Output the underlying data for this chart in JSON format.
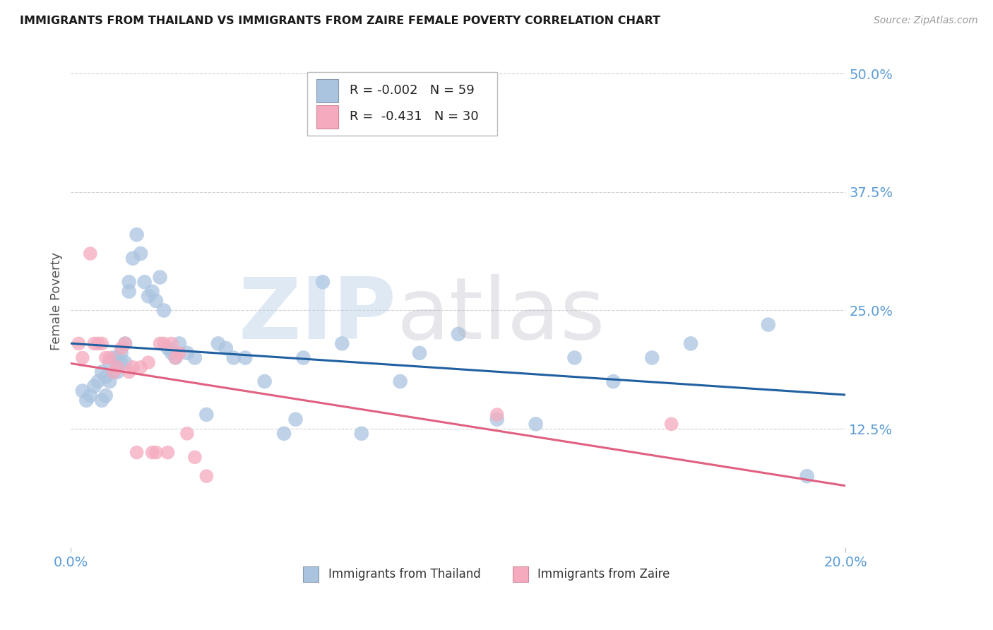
{
  "title": "IMMIGRANTS FROM THAILAND VS IMMIGRANTS FROM ZAIRE FEMALE POVERTY CORRELATION CHART",
  "source": "Source: ZipAtlas.com",
  "ylabel": "Female Poverty",
  "xlim": [
    0.0,
    0.2
  ],
  "ylim": [
    0.0,
    0.52
  ],
  "yticks": [
    0.0,
    0.125,
    0.25,
    0.375,
    0.5
  ],
  "ytick_labels": [
    "",
    "12.5%",
    "25.0%",
    "37.5%",
    "50.0%"
  ],
  "xtick_left": "0.0%",
  "xtick_right": "20.0%",
  "title_color": "#1a1a1a",
  "source_color": "#999999",
  "axis_label_color": "#5B9BD5",
  "grid_color": "#d0d0d0",
  "thailand_color": "#aac4e0",
  "zaire_color": "#f5aabe",
  "thailand_R": -0.002,
  "thailand_N": 59,
  "zaire_R": -0.431,
  "zaire_N": 30,
  "trend_blue_color": "#2060a0",
  "trend_pink_color": "#e06080",
  "thailand_x": [
    0.003,
    0.004,
    0.005,
    0.006,
    0.007,
    0.008,
    0.008,
    0.009,
    0.009,
    0.01,
    0.01,
    0.011,
    0.011,
    0.012,
    0.012,
    0.013,
    0.013,
    0.014,
    0.014,
    0.015,
    0.015,
    0.016,
    0.017,
    0.018,
    0.019,
    0.02,
    0.021,
    0.022,
    0.023,
    0.024,
    0.025,
    0.026,
    0.027,
    0.028,
    0.03,
    0.032,
    0.035,
    0.038,
    0.04,
    0.042,
    0.045,
    0.05,
    0.055,
    0.058,
    0.06,
    0.065,
    0.07,
    0.075,
    0.085,
    0.09,
    0.1,
    0.11,
    0.12,
    0.13,
    0.14,
    0.15,
    0.16,
    0.18,
    0.19
  ],
  "thailand_y": [
    0.165,
    0.155,
    0.16,
    0.17,
    0.175,
    0.155,
    0.185,
    0.16,
    0.18,
    0.195,
    0.175,
    0.2,
    0.185,
    0.185,
    0.2,
    0.195,
    0.205,
    0.215,
    0.195,
    0.28,
    0.27,
    0.305,
    0.33,
    0.31,
    0.28,
    0.265,
    0.27,
    0.26,
    0.285,
    0.25,
    0.21,
    0.205,
    0.2,
    0.215,
    0.205,
    0.2,
    0.14,
    0.215,
    0.21,
    0.2,
    0.2,
    0.175,
    0.12,
    0.135,
    0.2,
    0.28,
    0.215,
    0.12,
    0.175,
    0.205,
    0.225,
    0.135,
    0.13,
    0.2,
    0.175,
    0.2,
    0.215,
    0.235,
    0.075
  ],
  "zaire_x": [
    0.002,
    0.003,
    0.005,
    0.006,
    0.007,
    0.008,
    0.009,
    0.01,
    0.011,
    0.012,
    0.013,
    0.014,
    0.015,
    0.016,
    0.017,
    0.018,
    0.02,
    0.021,
    0.022,
    0.023,
    0.024,
    0.025,
    0.026,
    0.027,
    0.028,
    0.03,
    0.032,
    0.035,
    0.11,
    0.155
  ],
  "zaire_y": [
    0.215,
    0.2,
    0.31,
    0.215,
    0.215,
    0.215,
    0.2,
    0.2,
    0.185,
    0.19,
    0.21,
    0.215,
    0.185,
    0.19,
    0.1,
    0.19,
    0.195,
    0.1,
    0.1,
    0.215,
    0.215,
    0.1,
    0.215,
    0.2,
    0.205,
    0.12,
    0.095,
    0.075,
    0.14,
    0.13
  ]
}
